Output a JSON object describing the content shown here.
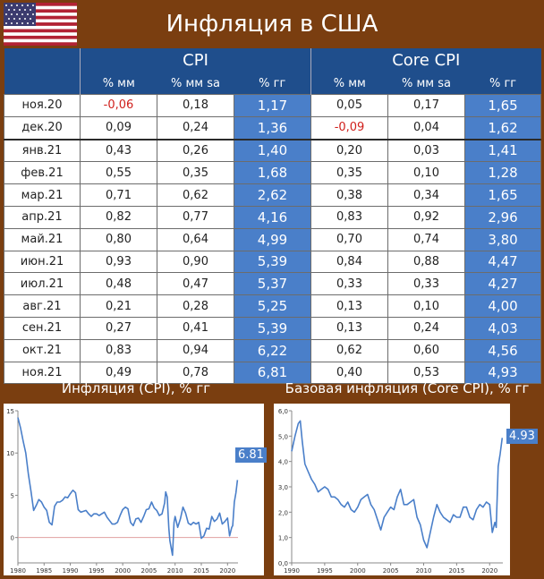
{
  "title": "Инфляция в США",
  "table": {
    "groups": [
      "CPI",
      "Core CPI"
    ],
    "subheaders": [
      "% мм",
      "% мм sa",
      "% гг",
      "% мм",
      "% мм sa",
      "% гг"
    ],
    "rows": [
      {
        "date": "ноя.20",
        "cpi_mm": "-0,06",
        "cpi_mm_sa": "0,18",
        "cpi_yoy": "1,17",
        "core_mm": "0,05",
        "core_mm_sa": "0,17",
        "core_yoy": "1,65"
      },
      {
        "date": "дек.20",
        "cpi_mm": "0,09",
        "cpi_mm_sa": "0,24",
        "cpi_yoy": "1,36",
        "core_mm": "-0,09",
        "core_mm_sa": "0,04",
        "core_yoy": "1,62"
      },
      {
        "date": "янв.21",
        "cpi_mm": "0,43",
        "cpi_mm_sa": "0,26",
        "cpi_yoy": "1,40",
        "core_mm": "0,20",
        "core_mm_sa": "0,03",
        "core_yoy": "1,41"
      },
      {
        "date": "фев.21",
        "cpi_mm": "0,55",
        "cpi_mm_sa": "0,35",
        "cpi_yoy": "1,68",
        "core_mm": "0,35",
        "core_mm_sa": "0,10",
        "core_yoy": "1,28"
      },
      {
        "date": "мар.21",
        "cpi_mm": "0,71",
        "cpi_mm_sa": "0,62",
        "cpi_yoy": "2,62",
        "core_mm": "0,38",
        "core_mm_sa": "0,34",
        "core_yoy": "1,65"
      },
      {
        "date": "апр.21",
        "cpi_mm": "0,82",
        "cpi_mm_sa": "0,77",
        "cpi_yoy": "4,16",
        "core_mm": "0,83",
        "core_mm_sa": "0,92",
        "core_yoy": "2,96"
      },
      {
        "date": "май.21",
        "cpi_mm": "0,80",
        "cpi_mm_sa": "0,64",
        "cpi_yoy": "4,99",
        "core_mm": "0,70",
        "core_mm_sa": "0,74",
        "core_yoy": "3,80"
      },
      {
        "date": "июн.21",
        "cpi_mm": "0,93",
        "cpi_mm_sa": "0,90",
        "cpi_yoy": "5,39",
        "core_mm": "0,84",
        "core_mm_sa": "0,88",
        "core_yoy": "4,47"
      },
      {
        "date": "июл.21",
        "cpi_mm": "0,48",
        "cpi_mm_sa": "0,47",
        "cpi_yoy": "5,37",
        "core_mm": "0,33",
        "core_mm_sa": "0,33",
        "core_yoy": "4,27"
      },
      {
        "date": "авг.21",
        "cpi_mm": "0,21",
        "cpi_mm_sa": "0,28",
        "cpi_yoy": "5,25",
        "core_mm": "0,13",
        "core_mm_sa": "0,10",
        "core_yoy": "4,00"
      },
      {
        "date": "сен.21",
        "cpi_mm": "0,27",
        "cpi_mm_sa": "0,41",
        "cpi_yoy": "5,39",
        "core_mm": "0,13",
        "core_mm_sa": "0,24",
        "core_yoy": "4,03"
      },
      {
        "date": "окт.21",
        "cpi_mm": "0,83",
        "cpi_mm_sa": "0,94",
        "cpi_yoy": "6,22",
        "core_mm": "0,62",
        "core_mm_sa": "0,60",
        "core_yoy": "4,56"
      },
      {
        "date": "ноя.21",
        "cpi_mm": "0,49",
        "cpi_mm_sa": "0,78",
        "cpi_yoy": "6,81",
        "core_mm": "0,40",
        "core_mm_sa": "0,53",
        "core_yoy": "4,93"
      }
    ]
  },
  "chart_data": [
    {
      "type": "line",
      "title": "Инфляция (CPI), % гг",
      "x_ticks": [
        "1980",
        "1985",
        "1990",
        "1995",
        "2000",
        "2005",
        "2010",
        "2015",
        "2020"
      ],
      "y_ticks": [
        "0",
        "5",
        "10",
        "15"
      ],
      "xlim": [
        1980,
        2022
      ],
      "ylim": [
        -3,
        15
      ],
      "reference_line": 0,
      "last_value_label": "6.81",
      "x": [
        1980,
        1980.5,
        1981,
        1981.5,
        1982,
        1982.5,
        1983,
        1983.5,
        1984,
        1984.5,
        1985,
        1985.5,
        1986,
        1986.5,
        1987,
        1987.5,
        1988,
        1988.5,
        1989,
        1989.5,
        1990,
        1990.5,
        1991,
        1991.5,
        1992,
        1992.5,
        1993,
        1993.5,
        1994,
        1994.5,
        1995,
        1995.5,
        1996,
        1996.5,
        1997,
        1997.5,
        1998,
        1998.5,
        1999,
        1999.5,
        2000,
        2000.5,
        2001,
        2001.5,
        2002,
        2002.5,
        2003,
        2003.5,
        2004,
        2004.5,
        2005,
        2005.5,
        2006,
        2006.5,
        2007,
        2007.5,
        2008,
        2008.2,
        2008.5,
        2008.8,
        2009,
        2009.5,
        2009.8,
        2010,
        2010.5,
        2011,
        2011.5,
        2012,
        2012.5,
        2013,
        2013.5,
        2014,
        2014.5,
        2015,
        2015.5,
        2016,
        2016.5,
        2017,
        2017.5,
        2018,
        2018.5,
        2019,
        2019.5,
        2020,
        2020.4,
        2020.8,
        2021,
        2021.3,
        2021.6,
        2021.9
      ],
      "y": [
        14.2,
        13,
        11.4,
        10,
        7.5,
        5.5,
        3.2,
        3.8,
        4.5,
        4.2,
        3.6,
        3.2,
        1.8,
        1.5,
        3.7,
        4.2,
        4.2,
        4.4,
        4.8,
        4.7,
        5.2,
        5.6,
        5.3,
        3.3,
        3,
        3.1,
        3.2,
        2.8,
        2.5,
        2.8,
        2.8,
        2.6,
        2.8,
        3,
        2.4,
        2,
        1.6,
        1.6,
        1.8,
        2.6,
        3.3,
        3.6,
        3.4,
        1.8,
        1.4,
        2.2,
        2.3,
        1.8,
        2.5,
        3.3,
        3.4,
        4.2,
        3.5,
        3.2,
        2.6,
        2.8,
        4.1,
        5.4,
        4.8,
        1.1,
        -0.4,
        -2.1,
        1.8,
        2.5,
        1.2,
        2.2,
        3.6,
        2.9,
        1.7,
        1.5,
        1.8,
        1.6,
        1.8,
        -0.1,
        0.2,
        1.1,
        1.0,
        2.5,
        1.9,
        2.2,
        2.9,
        1.6,
        1.9,
        2.3,
        0.2,
        1.2,
        1.4,
        4.2,
        5.3,
        6.81
      ]
    },
    {
      "type": "line",
      "title": "Базовая инфляция (Core CPI), % гг",
      "x_ticks": [
        "1990",
        "1995",
        "2000",
        "2005",
        "2010",
        "2015",
        "2020"
      ],
      "y_ticks": [
        "0,0",
        "1,0",
        "2,0",
        "3,0",
        "4,0",
        "5,0",
        "6,0"
      ],
      "xlim": [
        1990,
        2022
      ],
      "ylim": [
        0,
        6
      ],
      "last_value_label": "4.93",
      "x": [
        1990,
        1990.5,
        1991,
        1991.3,
        1991.6,
        1992,
        1992.5,
        1993,
        1993.5,
        1994,
        1994.5,
        1995,
        1995.5,
        1996,
        1996.5,
        1997,
        1997.5,
        1998,
        1998.5,
        1999,
        1999.5,
        2000,
        2000.5,
        2001,
        2001.5,
        2002,
        2002.5,
        2003,
        2003.5,
        2004,
        2004.5,
        2005,
        2005.5,
        2006,
        2006.5,
        2007,
        2007.5,
        2008,
        2008.5,
        2009,
        2009.5,
        2010,
        2010.5,
        2011,
        2011.5,
        2012,
        2012.5,
        2013,
        2013.5,
        2014,
        2014.5,
        2015,
        2015.5,
        2016,
        2016.5,
        2017,
        2017.5,
        2018,
        2018.5,
        2019,
        2019.5,
        2020,
        2020.4,
        2020.8,
        2021,
        2021.3,
        2021.6,
        2021.9
      ],
      "y": [
        4.4,
        5,
        5.5,
        5.6,
        4.8,
        3.9,
        3.6,
        3.3,
        3.1,
        2.8,
        2.9,
        3.0,
        2.9,
        2.6,
        2.6,
        2.5,
        2.3,
        2.2,
        2.4,
        2.1,
        2.0,
        2.2,
        2.5,
        2.6,
        2.7,
        2.3,
        2.1,
        1.7,
        1.3,
        1.8,
        2.0,
        2.2,
        2.1,
        2.6,
        2.9,
        2.3,
        2.3,
        2.4,
        2.5,
        1.8,
        1.5,
        0.9,
        0.6,
        1.2,
        1.8,
        2.3,
        2.0,
        1.8,
        1.7,
        1.6,
        1.9,
        1.8,
        1.8,
        2.2,
        2.2,
        1.8,
        1.7,
        2.1,
        2.3,
        2.2,
        2.4,
        2.3,
        1.2,
        1.6,
        1.4,
        3.8,
        4.3,
        4.93
      ]
    }
  ]
}
